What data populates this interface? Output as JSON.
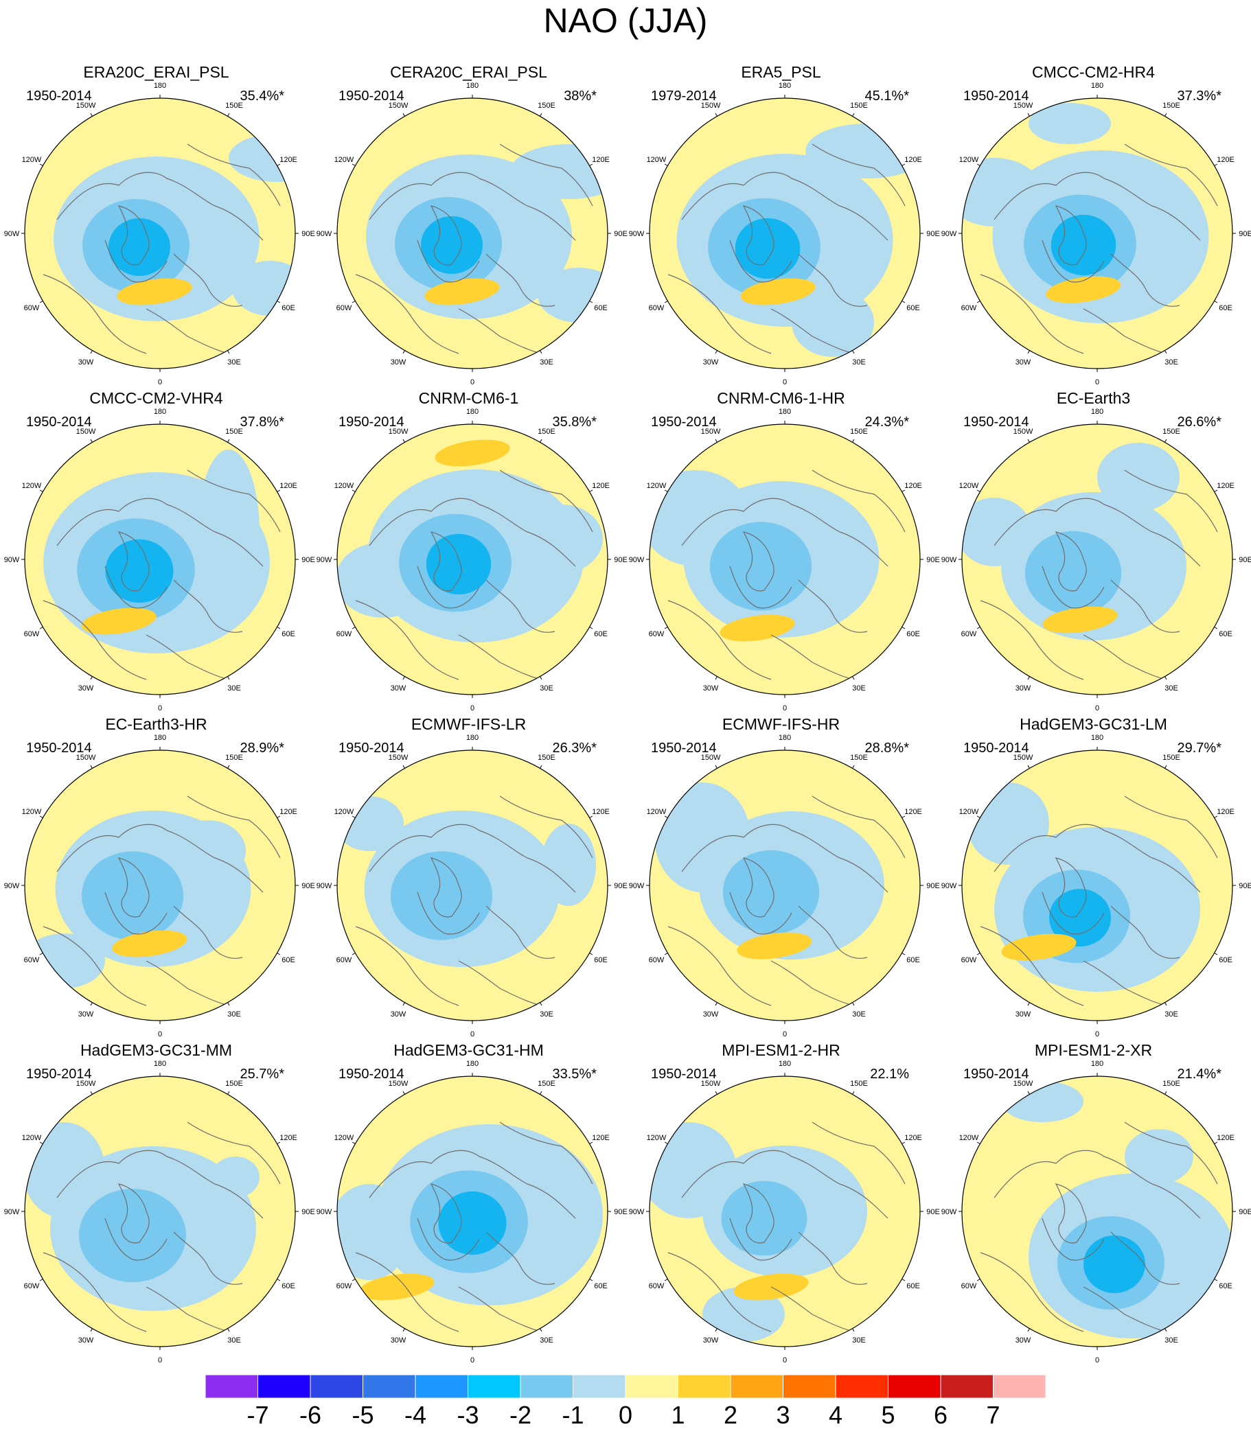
{
  "title": "NAO (JJA)",
  "colors": {
    "land_outline": "#6e6e6e",
    "neg1": "#b4dcf0",
    "neg2": "#78c8f0",
    "neg3": "#14b4f0",
    "pos1": "#fff59b",
    "pos2": "#ffd232",
    "pos3": "#ffa514"
  },
  "lon_labels": [
    "180",
    "150E",
    "120E",
    "90E",
    "60E",
    "30E",
    "0",
    "30W",
    "60W",
    "90W",
    "120W",
    "150W"
  ],
  "colorbar": {
    "colors": [
      "#8c2ef0",
      "#1e00ff",
      "#2d46e6",
      "#3278eb",
      "#1e96ff",
      "#00c8ff",
      "#78c8f0",
      "#b4dcf0",
      "#fff59b",
      "#ffd232",
      "#ffa514",
      "#ff7300",
      "#ff2d00",
      "#e60000",
      "#c81e1e",
      "#ffb4b4"
    ],
    "labels": [
      "-7",
      "-6",
      "-5",
      "-4",
      "-3",
      "-2",
      "-1",
      "0",
      "1",
      "2",
      "3",
      "4",
      "5",
      "6",
      "7"
    ]
  },
  "chart_data": {
    "type": "map",
    "projection": "polar stereographic, Northern Hemisphere",
    "field": "NAO (JJA) regression pattern",
    "colorbar_range": [
      -7,
      7
    ],
    "panels": [
      {
        "name": "ERA20C_ERAI_PSL",
        "period": "1950-2014",
        "variance_explained": "35.4%*",
        "min_level": -3,
        "max_level": 2
      },
      {
        "name": "CERA20C_ERAI_PSL",
        "period": "1950-2014",
        "variance_explained": "38%*",
        "min_level": -3,
        "max_level": 2
      },
      {
        "name": "ERA5_PSL",
        "period": "1979-2014",
        "variance_explained": "45.1%*",
        "min_level": -3,
        "max_level": 2
      },
      {
        "name": "CMCC-CM2-HR4",
        "period": "1950-2014",
        "variance_explained": "37.3%*",
        "min_level": -3,
        "max_level": 2
      },
      {
        "name": "CMCC-CM2-VHR4",
        "period": "1950-2014",
        "variance_explained": "37.8%*",
        "min_level": -3,
        "max_level": 2
      },
      {
        "name": "CNRM-CM6-1",
        "period": "1950-2014",
        "variance_explained": "35.8%*",
        "min_level": -3,
        "max_level": 2
      },
      {
        "name": "CNRM-CM6-1-HR",
        "period": "1950-2014",
        "variance_explained": "24.3%*",
        "min_level": -2,
        "max_level": 2
      },
      {
        "name": "EC-Earth3",
        "period": "1950-2014",
        "variance_explained": "26.6%*",
        "min_level": -2,
        "max_level": 2
      },
      {
        "name": "EC-Earth3-HR",
        "period": "1950-2014",
        "variance_explained": "28.9%*",
        "min_level": -2,
        "max_level": 2
      },
      {
        "name": "ECMWF-IFS-LR",
        "period": "1950-2014",
        "variance_explained": "26.3%*",
        "min_level": -2,
        "max_level": 1
      },
      {
        "name": "ECMWF-IFS-HR",
        "period": "1950-2014",
        "variance_explained": "28.8%*",
        "min_level": -2,
        "max_level": 2
      },
      {
        "name": "HadGEM3-GC31-LM",
        "period": "1950-2014",
        "variance_explained": "29.7%*",
        "min_level": -3,
        "max_level": 2
      },
      {
        "name": "HadGEM3-GC31-MM",
        "period": "1950-2014",
        "variance_explained": "25.7%*",
        "min_level": -2,
        "max_level": 1
      },
      {
        "name": "HadGEM3-GC31-HM",
        "period": "1950-2014",
        "variance_explained": "33.5%*",
        "min_level": -3,
        "max_level": 2
      },
      {
        "name": "MPI-ESM1-2-HR",
        "period": "1950-2014",
        "variance_explained": "22.1%",
        "min_level": -2,
        "max_level": 2
      },
      {
        "name": "MPI-ESM1-2-XR",
        "period": "1950-2014",
        "variance_explained": "21.4%*",
        "min_level": -3,
        "max_level": 1
      }
    ]
  }
}
